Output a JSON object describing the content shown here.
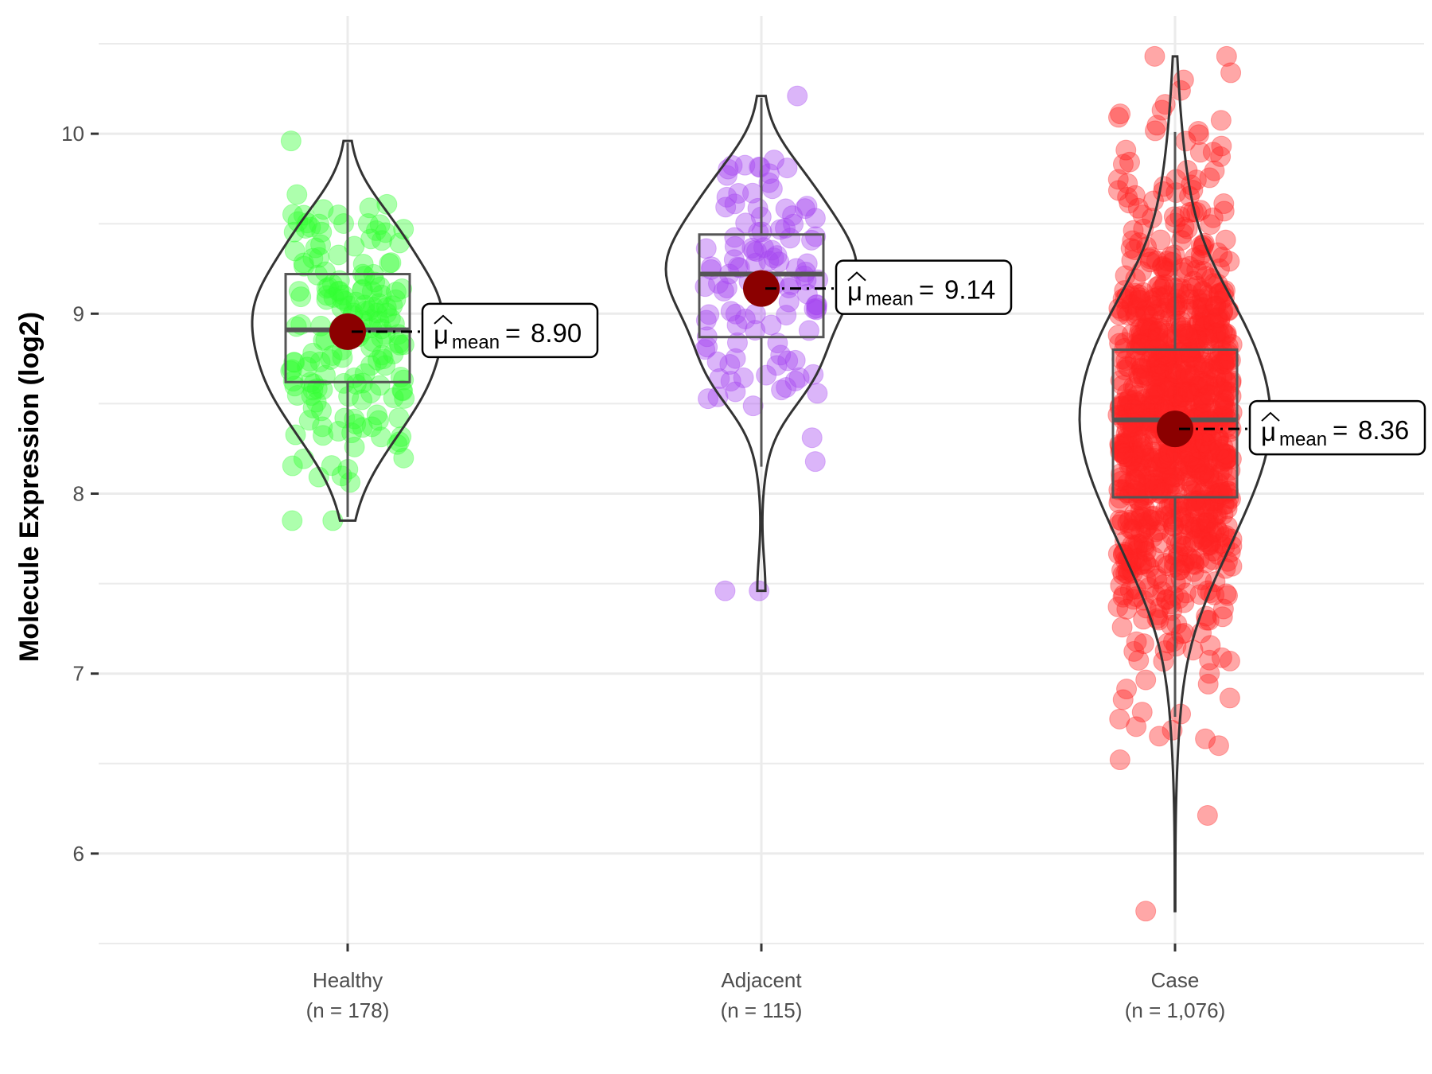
{
  "chart_data": {
    "type": "violin",
    "title": "",
    "xlabel": "",
    "ylabel": "Molecule Expression (log2)",
    "ylim": [
      5.5,
      10.5
    ],
    "yticks": [
      "6",
      "7",
      "8",
      "9",
      "10"
    ],
    "ytick_values": [
      6,
      7,
      8,
      9,
      10
    ],
    "grid": true,
    "legend": "none",
    "groups": [
      {
        "name": "Healthy",
        "n_label": "(n = 178)",
        "n": 178,
        "color": "#33FF33",
        "mean": 8.9,
        "mean_label": "8.90",
        "median": 8.91,
        "q1": 8.62,
        "q3": 9.22,
        "whisker_low": 7.87,
        "whisker_high": 9.95,
        "min": 7.85,
        "max": 9.96
      },
      {
        "name": "Adjacent",
        "n_label": "(n = 115)",
        "n": 115,
        "color": "#A545F0",
        "mean": 9.14,
        "mean_label": "9.14",
        "median": 9.22,
        "q1": 8.87,
        "q3": 9.44,
        "whisker_low": 8.15,
        "whisker_high": 10.2,
        "min": 7.46,
        "max": 10.21
      },
      {
        "name": "Case",
        "n_label": "(n = 1,076)",
        "n": 1076,
        "color": "#FF2222",
        "mean": 8.36,
        "mean_label": "8.36",
        "median": 8.41,
        "q1": 7.98,
        "q3": 8.8,
        "whisker_low": 6.76,
        "whisker_high": 10.01,
        "min": 5.68,
        "max": 10.43
      }
    ],
    "mean_symbol": "μ",
    "mean_subscript": "mean",
    "mean_equals": "=",
    "mean_point_color": "#8B0000"
  }
}
